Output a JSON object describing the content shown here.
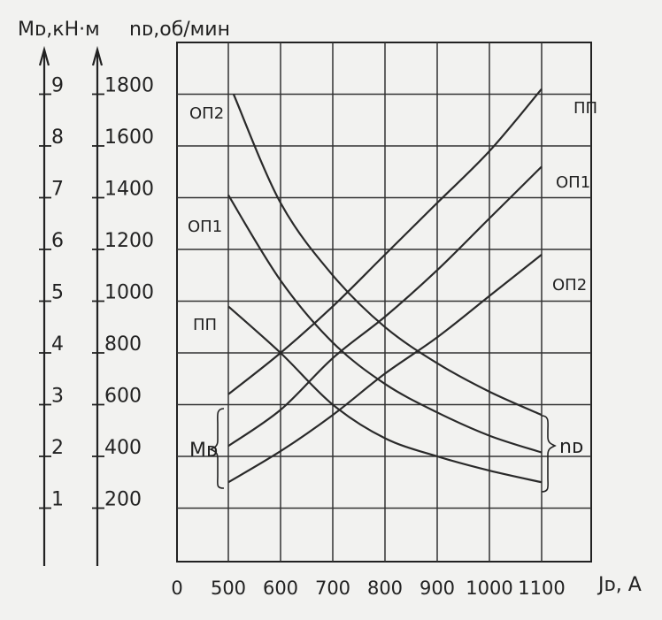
{
  "chart_data": {
    "type": "line",
    "ylabel_left": "Mᴅ,кН·м",
    "ylabel_right": "nᴅ,об/мин",
    "xlabel": "Jᴅ, A",
    "x_ticks": [
      "0",
      "500",
      "600",
      "700",
      "800",
      "900",
      "1000",
      "1100"
    ],
    "x_range": [
      500,
      1100
    ],
    "m_ticks": [
      "1",
      "2",
      "3",
      "4",
      "5",
      "6",
      "7",
      "8",
      "9"
    ],
    "n_ticks": [
      "200",
      "400",
      "600",
      "800",
      "1000",
      "1200",
      "1400",
      "1600",
      "1800"
    ],
    "m_range": [
      0,
      10
    ],
    "n_range": [
      0,
      2000
    ],
    "grid": true,
    "group_labels": {
      "torque": "Mᴅ",
      "speed": "nᴅ"
    },
    "series": [
      {
        "name": "ПП",
        "group": "torque",
        "unit": "kN·m",
        "x": [
          500,
          600,
          700,
          800,
          900,
          1000,
          1100
        ],
        "values": [
          3.2,
          4.0,
          4.9,
          5.9,
          6.9,
          7.9,
          9.1
        ]
      },
      {
        "name": "ОП1",
        "group": "torque",
        "unit": "kN·m",
        "x": [
          500,
          600,
          700,
          800,
          900,
          1000,
          1100
        ],
        "values": [
          2.2,
          2.9,
          3.9,
          4.7,
          5.6,
          6.6,
          7.6
        ]
      },
      {
        "name": "ОП2",
        "group": "torque",
        "unit": "kN·m",
        "x": [
          500,
          600,
          700,
          800,
          900,
          1000,
          1100
        ],
        "values": [
          1.5,
          2.1,
          2.8,
          3.6,
          4.3,
          5.1,
          5.9
        ]
      },
      {
        "name": "ОП2",
        "group": "speed",
        "unit": "об/мин",
        "x": [
          510,
          600,
          700,
          800,
          900,
          1000,
          1100
        ],
        "values": [
          1800,
          1380,
          1100,
          900,
          760,
          650,
          560
        ]
      },
      {
        "name": "ОП1",
        "group": "speed",
        "unit": "об/мин",
        "x": [
          500,
          600,
          700,
          800,
          900,
          1000,
          1100
        ],
        "values": [
          1410,
          1080,
          840,
          680,
          570,
          480,
          415
        ]
      },
      {
        "name": "ПП",
        "group": "speed",
        "unit": "об/мин",
        "x": [
          500,
          600,
          700,
          800,
          900,
          1000,
          1100
        ],
        "values": [
          980,
          800,
          600,
          470,
          400,
          345,
          300
        ]
      }
    ]
  }
}
